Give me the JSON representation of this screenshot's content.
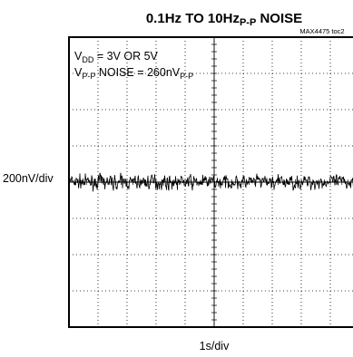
{
  "chart_data": {
    "type": "line",
    "title_parts": {
      "a": "0.1Hz TO 10Hz",
      "sub": "P-P",
      "b": " NOISE"
    },
    "tag": "MAX4475 toc2",
    "xlabel": "1s/div",
    "ylabel": "200nV/div",
    "x_divisions": 10,
    "y_divisions": 8,
    "x_range_s": [
      0,
      10
    ],
    "y_range_nV": [
      -800,
      800
    ],
    "grid": true,
    "annotation": {
      "line1": {
        "a": "V",
        "sub": "DD",
        "b": " = 3V OR 5V"
      },
      "line2": {
        "a": "V",
        "sub": "P-P",
        "b": " NOISE = 260nV",
        "sub2": "P-P"
      }
    },
    "noise_pp_nV": 260,
    "noise_center_nV": 0
  }
}
